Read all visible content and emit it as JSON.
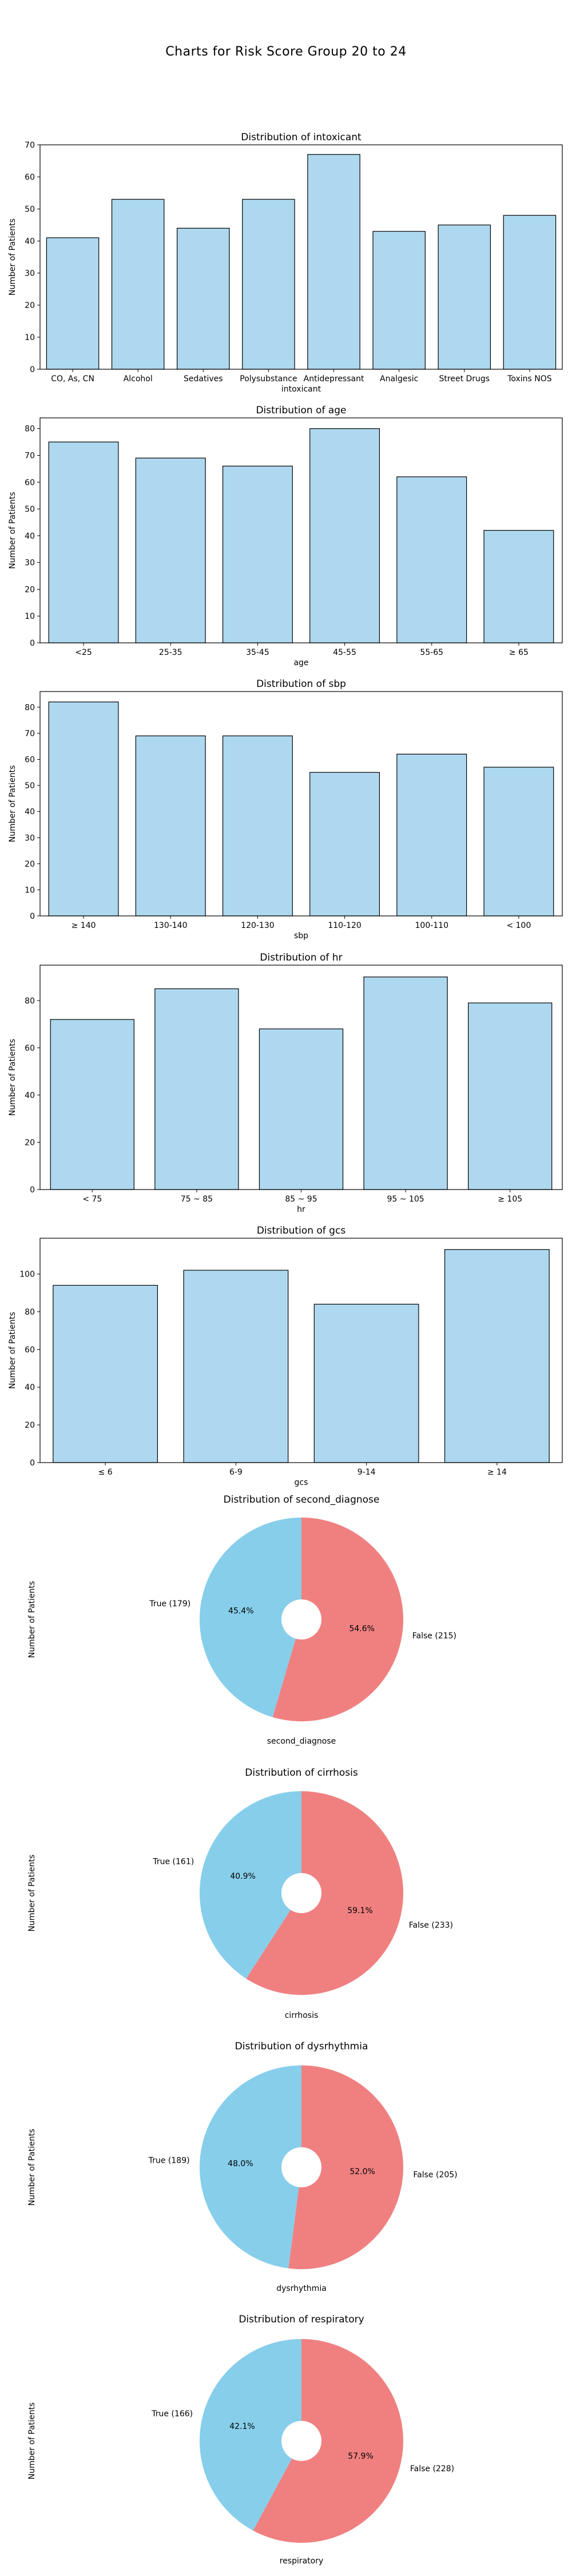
{
  "page": {
    "title": "Charts for Risk Score Group 20 to 24"
  },
  "colors": {
    "bar_fill": "#add8ef",
    "bar_edge": "#000000",
    "pie_true": "#87ceeb",
    "pie_false": "#f08080",
    "pie_hole": "#ffffff"
  },
  "chart_data": [
    {
      "id": "intoxicant",
      "type": "bar",
      "title": "Distribution of intoxicant",
      "xlabel": "intoxicant",
      "ylabel": "Number of Patients",
      "categories": [
        "CO, As, CN",
        "Alcohol",
        "Sedatives",
        "Polysubstance",
        "Antidepressant",
        "Analgesic",
        "Street Drugs",
        "Toxins NOS"
      ],
      "values": [
        41,
        53,
        44,
        53,
        67,
        43,
        45,
        48
      ],
      "ylim": [
        0,
        70
      ],
      "yticks": [
        0,
        10,
        20,
        30,
        40,
        50,
        60,
        70
      ],
      "grid": false
    },
    {
      "id": "age",
      "type": "bar",
      "title": "Distribution of age",
      "xlabel": "age",
      "ylabel": "Number of Patients",
      "categories": [
        "<25",
        "25-35",
        "35-45",
        "45-55",
        "55-65",
        "≥ 65"
      ],
      "values": [
        75,
        69,
        66,
        80,
        62,
        42
      ],
      "ylim": [
        0,
        84
      ],
      "yticks": [
        0,
        10,
        20,
        30,
        40,
        50,
        60,
        70,
        80
      ],
      "grid": false
    },
    {
      "id": "sbp",
      "type": "bar",
      "title": "Distribution of sbp",
      "xlabel": "sbp",
      "ylabel": "Number of Patients",
      "categories": [
        "≥ 140",
        "130-140",
        "120-130",
        "110-120",
        "100-110",
        "< 100"
      ],
      "values": [
        82,
        69,
        69,
        55,
        62,
        57
      ],
      "ylim": [
        0,
        86
      ],
      "yticks": [
        0,
        10,
        20,
        30,
        40,
        50,
        60,
        70,
        80
      ],
      "grid": false
    },
    {
      "id": "hr",
      "type": "bar",
      "title": "Distribution of hr",
      "xlabel": "hr",
      "ylabel": "Number of Patients",
      "categories": [
        "< 75",
        "75 ~ 85",
        "85 ~ 95",
        "95 ~ 105",
        "≥ 105"
      ],
      "values": [
        72,
        85,
        68,
        90,
        79
      ],
      "ylim": [
        0,
        95
      ],
      "yticks": [
        0,
        20,
        40,
        60,
        80
      ],
      "grid": false
    },
    {
      "id": "gcs",
      "type": "bar",
      "title": "Distribution of gcs",
      "xlabel": "gcs",
      "ylabel": "Number of Patients",
      "categories": [
        "≤ 6",
        "6-9",
        "9-14",
        "≥ 14"
      ],
      "values": [
        94,
        102,
        84,
        113
      ],
      "ylim": [
        0,
        119
      ],
      "yticks": [
        0,
        20,
        40,
        60,
        80,
        100
      ],
      "grid": false
    },
    {
      "id": "second_diagnose",
      "type": "pie",
      "title": "Distribution of second_diagnose",
      "xlabel": "second_diagnose",
      "ylabel": "Number of Patients",
      "labels": [
        "True (179)",
        "False (215)"
      ],
      "values": [
        179,
        215
      ],
      "percent_labels": [
        "45.4%",
        "54.6%"
      ]
    },
    {
      "id": "cirrhosis",
      "type": "pie",
      "title": "Distribution of cirrhosis",
      "xlabel": "cirrhosis",
      "ylabel": "Number of Patients",
      "labels": [
        "True (161)",
        "False (233)"
      ],
      "values": [
        161,
        233
      ],
      "percent_labels": [
        "40.9%",
        "59.1%"
      ]
    },
    {
      "id": "dysrhythmia",
      "type": "pie",
      "title": "Distribution of dysrhythmia",
      "xlabel": "dysrhythmia",
      "ylabel": "Number of Patients",
      "labels": [
        "True (189)",
        "False (205)"
      ],
      "values": [
        189,
        205
      ],
      "percent_labels": [
        "48.0%",
        "52.0%"
      ]
    },
    {
      "id": "respiratory",
      "type": "pie",
      "title": "Distribution of respiratory",
      "xlabel": "respiratory",
      "ylabel": "Number of Patients",
      "labels": [
        "True (166)",
        "False (228)"
      ],
      "values": [
        166,
        228
      ],
      "percent_labels": [
        "42.1%",
        "57.9%"
      ]
    }
  ]
}
